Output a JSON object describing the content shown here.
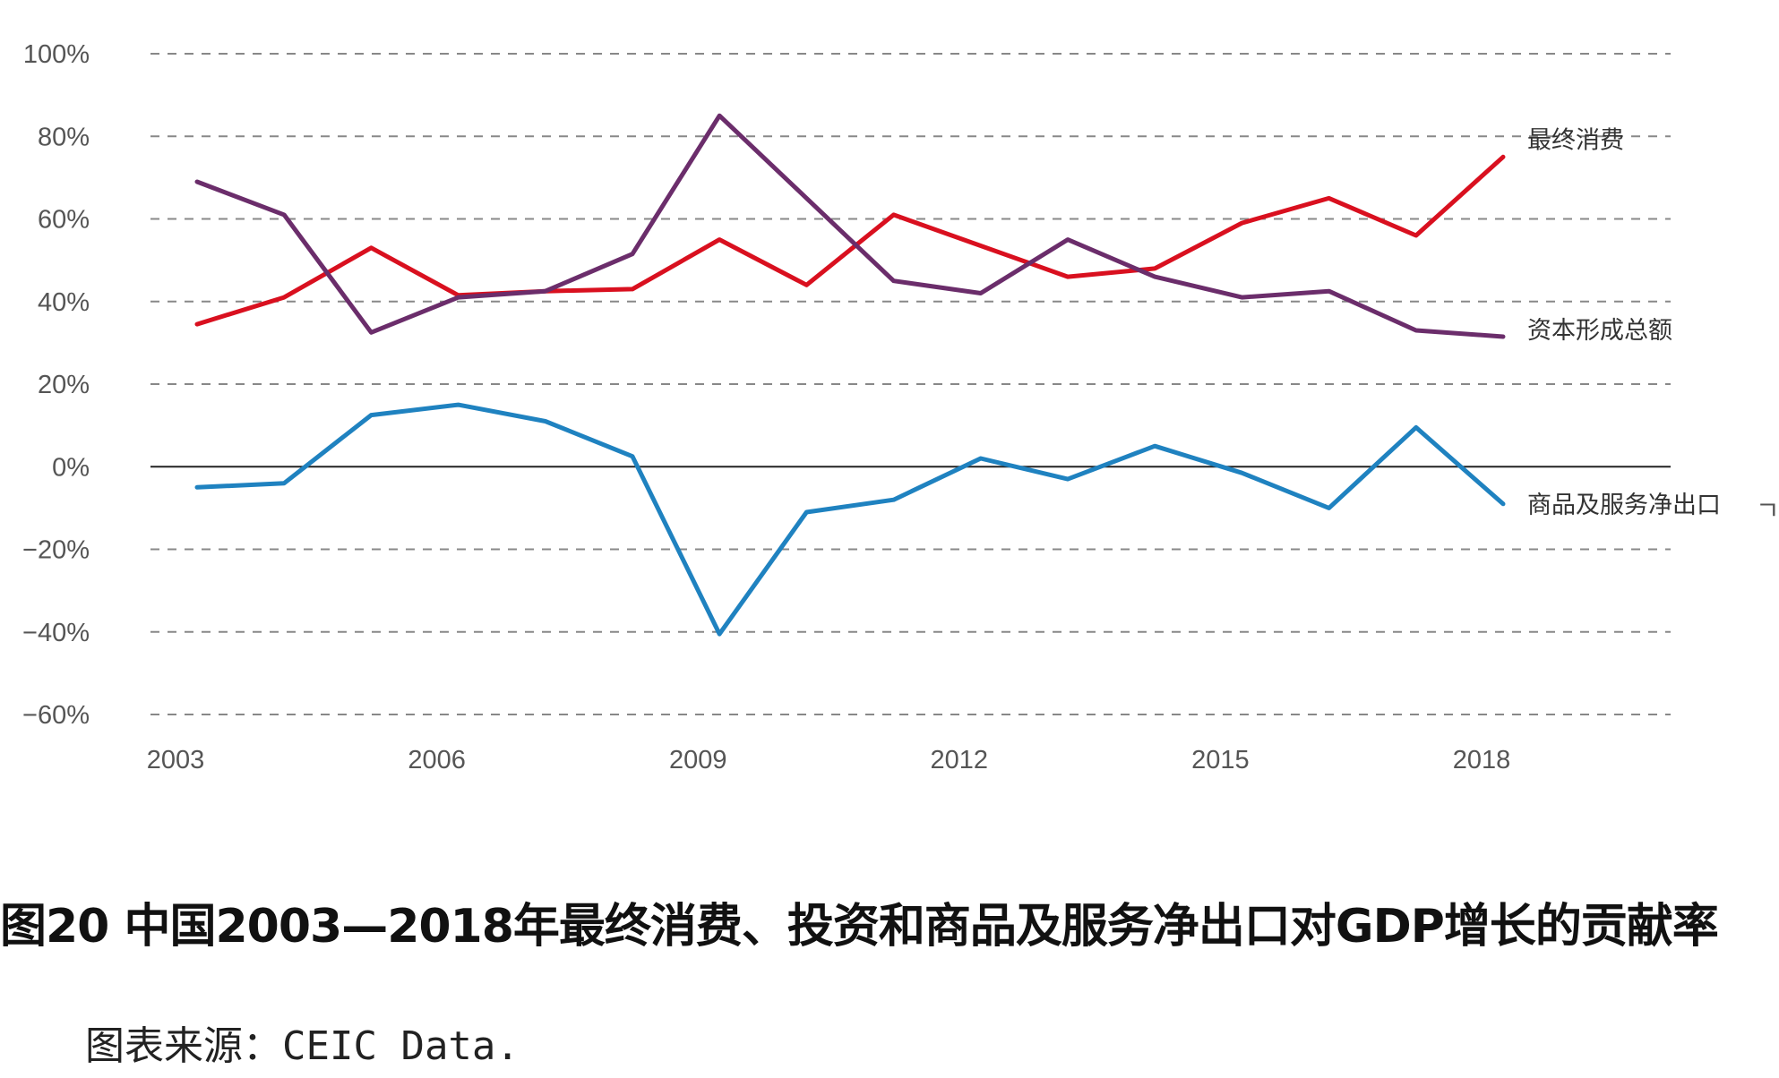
{
  "chart_data": {
    "type": "line",
    "x": [
      2003,
      2004,
      2005,
      2006,
      2007,
      2008,
      2009,
      2010,
      2011,
      2012,
      2013,
      2014,
      2015,
      2016,
      2017,
      2018
    ],
    "series": [
      {
        "name": "最终消费",
        "color": "#d9101f",
        "values": [
          34.5,
          41,
          53,
          41.5,
          42.5,
          43,
          55,
          44,
          61,
          53.5,
          46,
          48,
          59,
          65,
          56,
          75
        ]
      },
      {
        "name": "资本形成总额",
        "color": "#6b2d6b",
        "values": [
          69,
          61,
          32.5,
          41,
          42.5,
          51.5,
          85,
          65,
          45,
          42,
          55,
          46,
          41,
          42.5,
          33,
          31.5
        ]
      },
      {
        "name": "商品及服务净出口",
        "color": "#1f82c0",
        "values": [
          -5,
          -4,
          12.5,
          15,
          11,
          2.5,
          -40.5,
          -11,
          -8,
          2,
          -3,
          5,
          -1.5,
          -10,
          9.5,
          -9
        ]
      }
    ],
    "xticks": [
      "2003",
      "2006",
      "2009",
      "2012",
      "2015",
      "2018"
    ],
    "yticks": [
      "100%",
      "80%",
      "60%",
      "40%",
      "20%",
      "0%",
      "−20%",
      "−40%",
      "−60%"
    ],
    "ylim": [
      -60,
      100
    ],
    "grid": "horizontal dashed",
    "legend": "labels at line ends, right",
    "stray_mark": "ㄱ"
  },
  "caption": "图20 中国2003—2018年最终消费、投资和商品及服务净出口对GDP增长的贡献率",
  "source": "图表来源：CEIC Data."
}
